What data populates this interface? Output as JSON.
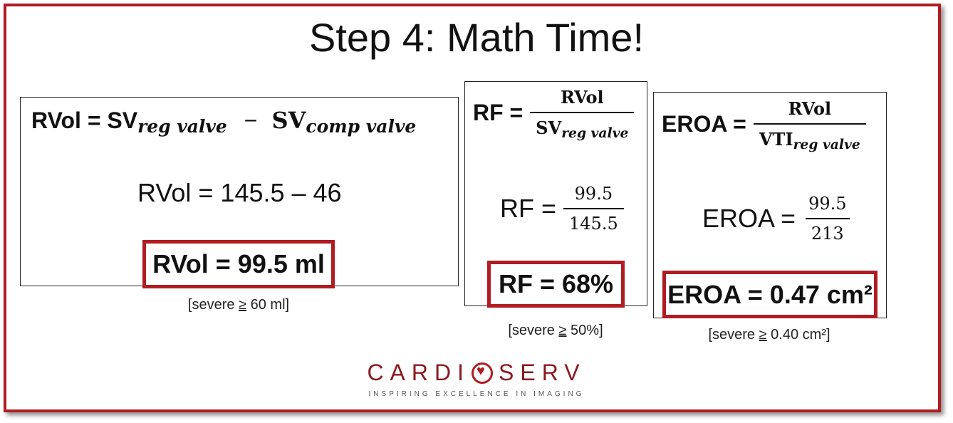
{
  "slide": {
    "title_prefix": "Step 4: ",
    "title_main": "Math Time!"
  },
  "rvol": {
    "lhs": "RVol = SV",
    "sub1": "reg valve",
    "minus": "−",
    "term2": "SV",
    "sub2": "comp valve",
    "calc": "RVol = 145.5 – 46",
    "result": "RVol = 99.5 ml",
    "note_prefix": "[severe ",
    "note_ge": "≥",
    "note_value": " 60 ml]"
  },
  "rf": {
    "lhs": "RF =",
    "num": "RVol",
    "den": "SV",
    "den_sub": "reg valve",
    "calc_lhs": "RF =",
    "calc_num": "99.5",
    "calc_den": "145.5",
    "result": "RF = 68%",
    "note_prefix": "[severe ",
    "note_ge": "≥",
    "note_value": " 50%]"
  },
  "eroa": {
    "lhs": "EROA =",
    "num": "RVol",
    "den": "VTI",
    "den_sub": "reg valve",
    "calc_lhs": "EROA =",
    "calc_num": "99.5",
    "calc_den": "213",
    "result": "EROA = 0.47 cm²",
    "note_prefix": "[severe ",
    "note_ge": "≥",
    "note_value": " 0.40 cm²]"
  },
  "logo": {
    "left": "CARDI",
    "right": "SERV",
    "tagline": "INSPIRING EXCELLENCE IN IMAGING"
  },
  "colors": {
    "accent": "#b01c22",
    "text": "#111111"
  }
}
